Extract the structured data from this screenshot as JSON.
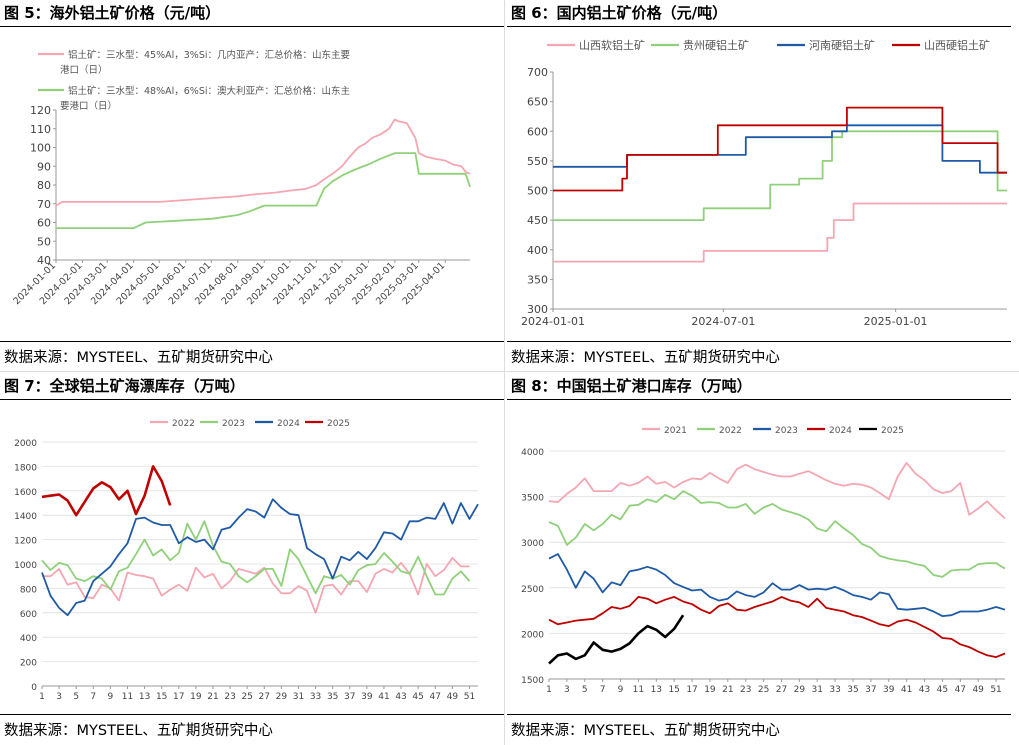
{
  "panels": [
    {
      "title": "图 5：海外铝土矿价格（元/吨）",
      "source": "数据来源：MYSTEEL、五矿期货研究中心"
    },
    {
      "title": "图 6：国内铝土矿价格（元/吨）",
      "source": "数据来源：MYSTEEL、五矿期货研究中心"
    },
    {
      "title": "图 7：全球铝土矿海漂库存（万吨）",
      "source": "数据来源：MYSTEEL、五矿期货研究中心"
    },
    {
      "title": "图 8：中国铝土矿港口库存（万吨）",
      "source": "数据来源：MYSTEEL、五矿期货研究中心"
    }
  ],
  "chart_data": [
    {
      "type": "line",
      "title": "图 5：海外铝土矿价格（元/吨）",
      "ylim": [
        40,
        120
      ],
      "yticks": [
        40,
        50,
        60,
        70,
        80,
        90,
        100,
        110,
        120
      ],
      "x_tick_labels": [
        "2024-01-01",
        "2024-02-01",
        "2024-03-01",
        "2024-04-01",
        "2024-05-01",
        "2024-06-01",
        "2024-07-01",
        "2024-08-01",
        "2024-09-01",
        "2024-10-01",
        "2024-11-01",
        "2024-12-01",
        "2025-01-01",
        "2025-02-01",
        "2025-03-01",
        "2025-04-01"
      ],
      "legend_placement": "top-left",
      "series": [
        {
          "name": "铝土矿：三水型：45%Al，3%Si：几内亚产：汇总价格：山东主要港口（日）",
          "color": "#f4a6b2",
          "x": [
            "2024-01-01",
            "2024-01-08",
            "2024-05-01",
            "2024-06-01",
            "2024-07-01",
            "2024-08-01",
            "2024-08-20",
            "2024-09-15",
            "2024-10-01",
            "2024-10-20",
            "2024-11-01",
            "2024-11-10",
            "2024-11-20",
            "2024-12-01",
            "2024-12-10",
            "2024-12-20",
            "2024-12-28",
            "2025-01-05",
            "2025-01-15",
            "2025-01-25",
            "2025-02-01",
            "2025-02-05",
            "2025-02-15",
            "2025-02-25",
            "2025-03-01",
            "2025-03-10",
            "2025-03-20",
            "2025-04-01",
            "2025-04-10",
            "2025-04-20",
            "2025-04-25",
            "2025-04-30"
          ],
          "y": [
            69,
            71,
            71,
            72,
            73,
            74,
            75,
            76,
            77,
            78,
            80,
            83,
            86,
            90,
            95,
            100,
            102,
            105,
            107,
            110,
            115,
            114,
            113,
            105,
            97,
            95,
            94,
            93,
            91,
            90,
            87,
            86
          ]
        },
        {
          "name": "铝土矿：三水型：48%Al，6%Si：澳大利亚产：汇总价格：山东主要港口（日）",
          "color": "#8fd07a",
          "x": [
            "2024-01-01",
            "2024-04-01",
            "2024-04-15",
            "2024-07-01",
            "2024-08-01",
            "2024-08-15",
            "2024-09-01",
            "2024-11-01",
            "2024-11-10",
            "2024-11-20",
            "2024-12-01",
            "2024-12-15",
            "2025-01-01",
            "2025-01-15",
            "2025-02-01",
            "2025-02-25",
            "2025-03-01",
            "2025-04-25",
            "2025-04-30"
          ],
          "y": [
            57,
            57,
            60,
            62,
            64,
            66,
            69,
            69,
            78,
            82,
            85,
            88,
            91,
            94,
            97,
            97,
            86,
            86,
            79
          ]
        }
      ]
    },
    {
      "type": "line",
      "title": "图 6：国内铝土矿价格（元/吨）",
      "ylim": [
        300,
        700
      ],
      "yticks": [
        300,
        350,
        400,
        450,
        500,
        550,
        600,
        650,
        700
      ],
      "x_tick_labels": [
        "2024-01-01",
        "2024-07-01",
        "2025-01-01"
      ],
      "legend_placement": "top",
      "series": [
        {
          "name": "山西软铝土矿",
          "color": "#f4a6b2",
          "x": [
            "2024-01-01",
            "2024-06-10",
            "2024-06-10",
            "2024-10-20",
            "2024-10-20",
            "2024-10-27",
            "2024-10-27",
            "2024-11-17",
            "2024-11-17",
            "2025-04-30"
          ],
          "y": [
            380,
            380,
            398,
            398,
            420,
            420,
            450,
            450,
            478,
            478
          ]
        },
        {
          "name": "贵州硬铝土矿",
          "color": "#8fd07a",
          "x": [
            "2024-01-01",
            "2024-06-10",
            "2024-06-10",
            "2024-08-20",
            "2024-08-20",
            "2024-09-20",
            "2024-09-20",
            "2024-10-15",
            "2024-10-15",
            "2024-10-25",
            "2024-10-25",
            "2024-11-05",
            "2024-11-05",
            "2025-04-20",
            "2025-04-20",
            "2025-04-30"
          ],
          "y": [
            450,
            450,
            470,
            470,
            510,
            510,
            520,
            520,
            550,
            550,
            590,
            590,
            600,
            600,
            500,
            500
          ]
        },
        {
          "name": "河南硬铝土矿",
          "color": "#1f5aa6",
          "x": [
            "2024-01-01",
            "2024-03-20",
            "2024-03-20",
            "2024-07-25",
            "2024-07-25",
            "2024-10-25",
            "2024-10-25",
            "2024-11-10",
            "2024-11-10",
            "2025-02-20",
            "2025-02-20",
            "2025-04-01",
            "2025-04-01",
            "2025-04-30"
          ],
          "y": [
            540,
            540,
            560,
            560,
            590,
            590,
            600,
            600,
            610,
            610,
            550,
            550,
            530,
            530
          ]
        },
        {
          "name": "山西硬铝土矿",
          "color": "#c00000",
          "x": [
            "2024-01-01",
            "2024-03-15",
            "2024-03-15",
            "2024-03-20",
            "2024-03-20",
            "2024-06-25",
            "2024-06-25",
            "2024-11-10",
            "2024-11-10",
            "2025-02-20",
            "2025-02-20",
            "2025-04-20",
            "2025-04-20",
            "2025-04-30"
          ],
          "y": [
            500,
            500,
            520,
            520,
            560,
            560,
            610,
            610,
            640,
            640,
            580,
            580,
            530,
            530
          ]
        }
      ]
    },
    {
      "type": "line",
      "title": "图 7：全球铝土矿海漂库存（万吨）",
      "ylim": [
        0,
        2000
      ],
      "yticks": [
        0,
        200,
        400,
        600,
        800,
        1000,
        1200,
        1400,
        1600,
        1800,
        2000
      ],
      "x_tick_labels": [
        "1",
        "3",
        "5",
        "7",
        "9",
        "11",
        "13",
        "15",
        "17",
        "19",
        "21",
        "23",
        "25",
        "27",
        "29",
        "31",
        "33",
        "35",
        "37",
        "39",
        "41",
        "43",
        "45",
        "47",
        "49",
        "51"
      ],
      "legend_placement": "top",
      "series": [
        {
          "name": "2022",
          "color": "#f4a6b2",
          "values": [
            900,
            900,
            960,
            830,
            850,
            730,
            720,
            830,
            800,
            700,
            930,
            910,
            900,
            880,
            740,
            790,
            830,
            780,
            970,
            890,
            920,
            800,
            860,
            960,
            940,
            920,
            970,
            840,
            760,
            760,
            820,
            780,
            600,
            820,
            830,
            750,
            860,
            860,
            770,
            920,
            960,
            930,
            1010,
            920,
            750,
            1000,
            900,
            950,
            1050,
            980,
            980
          ]
        },
        {
          "name": "2023",
          "color": "#8fd07a",
          "values": [
            1030,
            950,
            1010,
            990,
            880,
            860,
            900,
            880,
            790,
            940,
            970,
            1080,
            1200,
            1070,
            1120,
            1030,
            1090,
            1330,
            1200,
            1350,
            1150,
            1020,
            1000,
            900,
            850,
            900,
            960,
            960,
            820,
            1120,
            1040,
            900,
            760,
            900,
            880,
            910,
            830,
            950,
            990,
            1000,
            1090,
            1020,
            940,
            920,
            1060,
            900,
            750,
            750,
            880,
            940,
            860
          ]
        },
        {
          "name": "2024",
          "color": "#1f5aa6",
          "values": [
            930,
            740,
            640,
            580,
            680,
            700,
            860,
            920,
            980,
            1080,
            1170,
            1370,
            1380,
            1340,
            1320,
            1320,
            1170,
            1220,
            1180,
            1200,
            1120,
            1280,
            1300,
            1380,
            1450,
            1430,
            1380,
            1530,
            1460,
            1410,
            1400,
            1130,
            1080,
            1040,
            880,
            1060,
            1030,
            1100,
            1040,
            1130,
            1260,
            1250,
            1200,
            1350,
            1350,
            1380,
            1370,
            1500,
            1330,
            1500,
            1370,
            1490
          ]
        },
        {
          "name": "2025",
          "color": "#c00000",
          "values": [
            1550,
            1560,
            1570,
            1520,
            1400,
            1510,
            1620,
            1670,
            1630,
            1530,
            1600,
            1410,
            1560,
            1800,
            1680,
            1480
          ]
        }
      ]
    },
    {
      "type": "line",
      "title": "图 8：中国铝土矿港口库存（万吨）",
      "ylim": [
        1500,
        4000
      ],
      "yticks": [
        1500,
        2000,
        2500,
        3000,
        3500,
        4000
      ],
      "x_tick_labels": [
        "1",
        "3",
        "5",
        "7",
        "9",
        "11",
        "13",
        "15",
        "17",
        "19",
        "21",
        "23",
        "25",
        "27",
        "29",
        "31",
        "33",
        "35",
        "37",
        "39",
        "41",
        "43",
        "45",
        "47",
        "49",
        "51"
      ],
      "legend_placement": "top",
      "series": [
        {
          "name": "2021",
          "color": "#f4a6b2",
          "values": [
            3450,
            3440,
            3530,
            3600,
            3700,
            3560,
            3560,
            3560,
            3650,
            3620,
            3650,
            3720,
            3640,
            3660,
            3600,
            3660,
            3700,
            3690,
            3760,
            3700,
            3650,
            3800,
            3850,
            3800,
            3770,
            3740,
            3720,
            3720,
            3750,
            3780,
            3730,
            3680,
            3640,
            3620,
            3640,
            3630,
            3600,
            3540,
            3470,
            3720,
            3870,
            3750,
            3680,
            3580,
            3540,
            3560,
            3650,
            3300,
            3370,
            3450,
            3350,
            3260
          ]
        },
        {
          "name": "2022",
          "color": "#8fd07a",
          "values": [
            3220,
            3180,
            2970,
            3050,
            3200,
            3130,
            3200,
            3300,
            3250,
            3400,
            3410,
            3470,
            3440,
            3520,
            3470,
            3560,
            3510,
            3430,
            3440,
            3430,
            3380,
            3380,
            3420,
            3310,
            3380,
            3420,
            3360,
            3330,
            3300,
            3250,
            3150,
            3120,
            3230,
            3150,
            3080,
            2980,
            2940,
            2850,
            2820,
            2800,
            2790,
            2760,
            2740,
            2640,
            2620,
            2690,
            2700,
            2700,
            2760,
            2770,
            2770,
            2710
          ]
        },
        {
          "name": "2023",
          "color": "#1f5aa6",
          "values": [
            2820,
            2870,
            2700,
            2500,
            2680,
            2600,
            2450,
            2560,
            2530,
            2680,
            2700,
            2730,
            2700,
            2640,
            2550,
            2510,
            2470,
            2480,
            2400,
            2360,
            2380,
            2460,
            2420,
            2400,
            2450,
            2550,
            2480,
            2480,
            2530,
            2480,
            2490,
            2480,
            2510,
            2470,
            2420,
            2400,
            2370,
            2450,
            2430,
            2270,
            2260,
            2270,
            2280,
            2240,
            2190,
            2200,
            2240,
            2240,
            2240,
            2260,
            2290,
            2260
          ]
        },
        {
          "name": "2024",
          "color": "#c00000",
          "values": [
            2150,
            2100,
            2120,
            2140,
            2150,
            2160,
            2220,
            2290,
            2270,
            2300,
            2400,
            2380,
            2330,
            2370,
            2400,
            2350,
            2320,
            2260,
            2220,
            2300,
            2330,
            2260,
            2250,
            2290,
            2320,
            2350,
            2400,
            2360,
            2340,
            2290,
            2380,
            2280,
            2260,
            2240,
            2200,
            2180,
            2140,
            2100,
            2080,
            2130,
            2150,
            2120,
            2070,
            2020,
            1950,
            1940,
            1880,
            1850,
            1800,
            1760,
            1740,
            1780
          ]
        },
        {
          "name": "2025",
          "color": "#000000",
          "values": [
            1670,
            1760,
            1780,
            1720,
            1760,
            1900,
            1820,
            1800,
            1830,
            1890,
            2000,
            2080,
            2040,
            1960,
            2050,
            2200
          ]
        }
      ]
    }
  ]
}
